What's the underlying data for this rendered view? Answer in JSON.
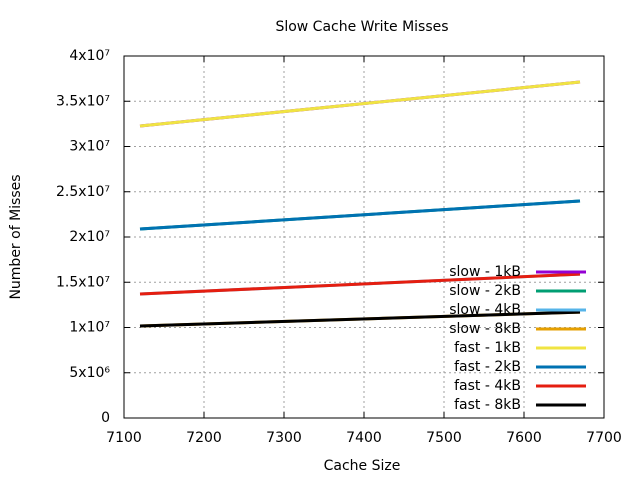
{
  "chart_data": {
    "type": "line",
    "title": "Slow Cache Write Misses",
    "xlabel": "Cache Size",
    "ylabel": "Number of Misses",
    "x": [
      7120,
      7670
    ],
    "series": [
      {
        "name": "slow - 1kB",
        "color": "#9400d3",
        "values": [
          32270000,
          37130000
        ]
      },
      {
        "name": "slow - 2kB",
        "color": "#009e73",
        "values": [
          20880000,
          23980000
        ]
      },
      {
        "name": "slow - 4kB",
        "color": "#56b4e9",
        "values": [
          13700000,
          15900000
        ]
      },
      {
        "name": "slow - 8kB",
        "color": "#e69f00",
        "values": [
          10170000,
          11700000
        ]
      },
      {
        "name": "fast - 1kB",
        "color": "#f0e442",
        "values": [
          32270000,
          37130000
        ]
      },
      {
        "name": "fast - 2kB",
        "color": "#0072b2",
        "values": [
          20880000,
          23980000
        ]
      },
      {
        "name": "fast - 4kB",
        "color": "#e51e10",
        "values": [
          13700000,
          15900000
        ]
      },
      {
        "name": "fast - 8kB",
        "color": "#000000",
        "values": [
          10170000,
          11700000
        ]
      }
    ],
    "xlim": [
      7100,
      7700
    ],
    "xticks": [
      7100,
      7200,
      7300,
      7400,
      7500,
      7600,
      7700
    ],
    "ylim": [
      0,
      40000000
    ],
    "yticks": [
      0,
      {
        "value": 5000000,
        "label": "5x10⁶"
      },
      {
        "value": 10000000,
        "label": "1x10⁷"
      },
      {
        "value": 15000000,
        "label": "1.5x10⁷"
      },
      {
        "value": 20000000,
        "label": "2x10⁷"
      },
      {
        "value": 25000000,
        "label": "2.5x10⁷"
      },
      {
        "value": 30000000,
        "label": "3x10⁷"
      },
      {
        "value": 35000000,
        "label": "3.5x10⁷"
      },
      {
        "value": 40000000,
        "label": "4x10⁷"
      }
    ],
    "grid": true,
    "legend": "lower right"
  }
}
